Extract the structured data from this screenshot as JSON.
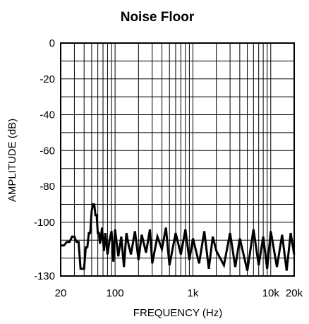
{
  "chart_data": {
    "type": "line",
    "title": "Noise Floor",
    "xlabel": "FREQUENCY (Hz)",
    "ylabel": "AMPLITUDE (dB)",
    "x_scale": "log",
    "xlim": [
      20,
      20000
    ],
    "ylim": [
      -130,
      0
    ],
    "grid": true,
    "x_ticks": [
      {
        "value": 20,
        "label": "20"
      },
      {
        "value": 100,
        "label": "100"
      },
      {
        "value": 1000,
        "label": "1k"
      },
      {
        "value": 10000,
        "label": "10k"
      },
      {
        "value": 20000,
        "label": "20k"
      }
    ],
    "y_ticks": [
      {
        "value": 0,
        "label": "0"
      },
      {
        "value": -20,
        "label": "-20"
      },
      {
        "value": -40,
        "label": "-40"
      },
      {
        "value": -60,
        "label": "-60"
      },
      {
        "value": -80,
        "label": "-80"
      },
      {
        "value": -100,
        "label": "-100"
      },
      {
        "value": -130,
        "label": "-130"
      }
    ],
    "y_gridlines": [
      0,
      -10,
      -20,
      -30,
      -40,
      -50,
      -60,
      -70,
      -80,
      -90,
      -100,
      -110,
      -120,
      -130
    ],
    "x_gridlines": [
      20,
      30,
      40,
      50,
      60,
      70,
      80,
      90,
      100,
      200,
      300,
      400,
      500,
      600,
      700,
      800,
      900,
      1000,
      2000,
      3000,
      4000,
      5000,
      6000,
      7000,
      8000,
      9000,
      10000,
      20000
    ],
    "series": [
      {
        "line_color": "#000000",
        "x": [
          20,
          22,
          24,
          26,
          28,
          30,
          32,
          34,
          36,
          38,
          40,
          42,
          44,
          46,
          48,
          50,
          52,
          54,
          56,
          58,
          60,
          62,
          64,
          66,
          68,
          70,
          72,
          75,
          80,
          85,
          90,
          95,
          100,
          110,
          120,
          130,
          140,
          150,
          160,
          180,
          200,
          220,
          250,
          280,
          300,
          350,
          400,
          450,
          500,
          600,
          700,
          800,
          900,
          1000,
          1200,
          1400,
          1600,
          1800,
          2000,
          2500,
          3000,
          3500,
          4000,
          5000,
          6000,
          7000,
          8000,
          9000,
          10000,
          12000,
          14000,
          16000,
          18000,
          20000
        ],
        "y": [
          -113,
          -113,
          -111,
          -111,
          -108,
          -108,
          -111,
          -111,
          -126,
          -126,
          -126,
          -114,
          -114,
          -106,
          -106,
          -94,
          -90,
          -90,
          -96,
          -96,
          -106,
          -106,
          -112,
          -108,
          -103,
          -110,
          -116,
          -106,
          -118,
          -110,
          -105,
          -122,
          -104,
          -119,
          -108,
          -125,
          -106,
          -113,
          -118,
          -105,
          -121,
          -107,
          -117,
          -104,
          -123,
          -108,
          -115,
          -103,
          -124,
          -106,
          -118,
          -104,
          -121,
          -109,
          -123,
          -105,
          -126,
          -108,
          -116,
          -124,
          -106,
          -125,
          -109,
          -127,
          -104,
          -124,
          -108,
          -126,
          -105,
          -125,
          -107,
          -127,
          -106,
          -118
        ]
      }
    ]
  }
}
